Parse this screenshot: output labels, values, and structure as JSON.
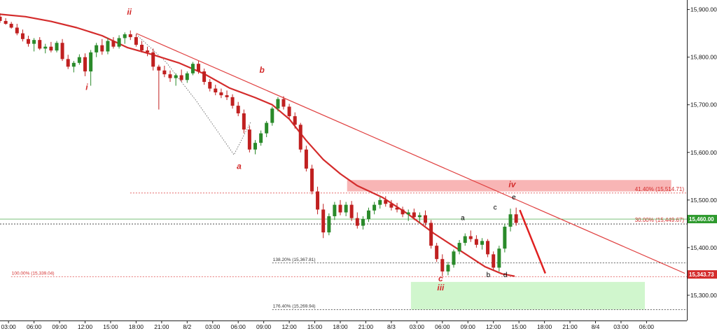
{
  "chart_data": {
    "type": "candlestick",
    "title": "",
    "xlabel": "",
    "ylabel": "",
    "ylim": [
      15247,
      15920
    ],
    "y_ticks": [
      {
        "value": 15900,
        "label": "15,900.00"
      },
      {
        "value": 15800,
        "label": "15,800.00"
      },
      {
        "value": 15700,
        "label": "15,700.00"
      },
      {
        "value": 15600,
        "label": "15,600.00"
      },
      {
        "value": 15500,
        "label": "15,500.00"
      },
      {
        "value": 15400,
        "label": "15,400.00"
      },
      {
        "value": 15300,
        "label": "15,300.00"
      }
    ],
    "x_tick_labels": [
      "03:00",
      "06:00",
      "09:00",
      "12:00",
      "15:00",
      "18:00",
      "21:00",
      "8/2",
      "03:00",
      "06:00",
      "09:00",
      "12:00",
      "15:00",
      "18:00",
      "21:00",
      "8/3",
      "03:00",
      "06:00",
      "09:00",
      "12:00",
      "15:00",
      "18:00",
      "21:00",
      "8/4",
      "03:00",
      "06:00"
    ],
    "x_range_hours": [
      0,
      80.5
    ],
    "x_ticks_hours": [
      1,
      4,
      7,
      10,
      13,
      16,
      19,
      22,
      25,
      28,
      31,
      34,
      37,
      40,
      43,
      46,
      49,
      52,
      55,
      58,
      61,
      64,
      67,
      70,
      73,
      76
    ],
    "price_badges": [
      {
        "value": 15460,
        "label": "15,460.00",
        "color": "#2e9a2e"
      },
      {
        "value": 15343.73,
        "label": "15,343.73",
        "color": "#d42c2c"
      }
    ],
    "fib_levels": [
      {
        "value": 15514.71,
        "label": "41.40% (15,514.71)",
        "label_side": "right",
        "start_h": 15.3
      },
      {
        "value": 15449.67,
        "label": "30.00% (15,449.67)",
        "label_side": "right",
        "start_h": 0
      },
      {
        "value": 15367.81,
        "label": "138.20% (15,367.81)",
        "label_side": "left",
        "start_h": 32
      },
      {
        "value": 15339.04,
        "label": "100.00% (15,339.04)",
        "label_side": "left",
        "start_h": 1.3
      },
      {
        "value": 15269.94,
        "label": "176.40% (15,269.94)",
        "label_side": "left",
        "start_h": 32
      }
    ],
    "zones": [
      {
        "name": "resistance",
        "x0_h": 40.8,
        "x1_h": 78.9,
        "y0": 15518,
        "y1": 15542,
        "color": "#f7a8a8"
      },
      {
        "name": "target",
        "x0_h": 48.3,
        "x1_h": 75.8,
        "y0": 15270,
        "y1": 15328,
        "color": "#c8f5c4"
      }
    ],
    "trendline": {
      "x0_h": 16,
      "y0": 15850,
      "x1_h": 80.5,
      "y1": 15346,
      "color": "#e04040"
    },
    "moving_average": [
      [
        0,
        15890
      ],
      [
        3,
        15885
      ],
      [
        6,
        15875
      ],
      [
        9,
        15862
      ],
      [
        12,
        15845
      ],
      [
        15,
        15820
      ],
      [
        18,
        15805
      ],
      [
        21,
        15788
      ],
      [
        24,
        15765
      ],
      [
        27,
        15735
      ],
      [
        30,
        15715
      ],
      [
        32,
        15700
      ],
      [
        34,
        15670
      ],
      [
        36,
        15625
      ],
      [
        38,
        15585
      ],
      [
        40,
        15555
      ],
      [
        42,
        15530
      ],
      [
        45,
        15505
      ],
      [
        48,
        15470
      ],
      [
        51,
        15430
      ],
      [
        54,
        15395
      ],
      [
        57,
        15360
      ],
      [
        59,
        15345
      ],
      [
        60.5,
        15340
      ]
    ],
    "projection": [
      [
        61.1,
        15479
      ],
      [
        64.1,
        15346
      ]
    ],
    "dotted_path": [
      [
        16,
        15848
      ],
      [
        19.5,
        15790
      ],
      [
        23,
        15710
      ],
      [
        27.5,
        15595
      ],
      [
        29.5,
        15665
      ]
    ],
    "wave_labels": [
      {
        "text": "ii",
        "x_h": 15.2,
        "y": 15889,
        "color": "#d42c2c",
        "italic": true
      },
      {
        "text": "i",
        "x_h": 10.2,
        "y": 15731,
        "color": "#d42c2c",
        "italic": true
      },
      {
        "text": "b",
        "x_h": 30.8,
        "y": 15767,
        "color": "#d42c2c",
        "italic": true
      },
      {
        "text": "a",
        "x_h": 28.1,
        "y": 15565,
        "color": "#d42c2c",
        "italic": true
      },
      {
        "text": "iv",
        "x_h": 60.2,
        "y": 15527,
        "color": "#d42c2c",
        "italic": true
      },
      {
        "text": "c",
        "x_h": 51.8,
        "y": 15329,
        "color": "#d42c2c",
        "italic": true
      },
      {
        "text": "iii",
        "x_h": 51.8,
        "y": 15310,
        "color": "#d42c2c",
        "italic": true
      },
      {
        "text": "a",
        "x_h": 54.4,
        "y": 15458,
        "color": "#000000",
        "italic": false
      },
      {
        "text": "b",
        "x_h": 57.4,
        "y": 15338,
        "color": "#000000",
        "italic": false
      },
      {
        "text": "c",
        "x_h": 58.2,
        "y": 15480,
        "color": "#000000",
        "italic": false
      },
      {
        "text": "d",
        "x_h": 59.4,
        "y": 15338,
        "color": "#000000",
        "italic": false
      },
      {
        "text": "e",
        "x_h": 60.4,
        "y": 15501,
        "color": "#000000",
        "italic": false
      }
    ],
    "candles": [
      [
        0,
        15885,
        15892,
        15872,
        15876
      ],
      [
        0.67,
        15876,
        15882,
        15868,
        15870
      ],
      [
        1.33,
        15870,
        15874,
        15860,
        15862
      ],
      [
        2,
        15862,
        15870,
        15846,
        15850
      ],
      [
        2.67,
        15850,
        15858,
        15833,
        15838
      ],
      [
        3.33,
        15838,
        15845,
        15822,
        15828
      ],
      [
        4,
        15828,
        15840,
        15812,
        15836
      ],
      [
        4.67,
        15836,
        15842,
        15815,
        15818
      ],
      [
        5.33,
        15818,
        15828,
        15808,
        15822
      ],
      [
        6,
        15822,
        15832,
        15810,
        15814
      ],
      [
        6.67,
        15814,
        15834,
        15810,
        15830
      ],
      [
        7.33,
        15830,
        15838,
        15792,
        15796
      ],
      [
        8,
        15796,
        15805,
        15775,
        15780
      ],
      [
        8.67,
        15780,
        15792,
        15768,
        15788
      ],
      [
        9.33,
        15788,
        15806,
        15784,
        15800
      ],
      [
        10,
        15800,
        15808,
        15760,
        15770
      ],
      [
        10.67,
        15770,
        15815,
        15740,
        15810
      ],
      [
        11.33,
        15810,
        15830,
        15800,
        15825
      ],
      [
        12,
        15825,
        15838,
        15805,
        15812
      ],
      [
        12.67,
        15812,
        15840,
        15806,
        15834
      ],
      [
        13.33,
        15834,
        15842,
        15818,
        15822
      ],
      [
        14,
        15822,
        15846,
        15818,
        15840
      ],
      [
        14.67,
        15840,
        15852,
        15828,
        15848
      ],
      [
        15.33,
        15848,
        15856,
        15836,
        15842
      ],
      [
        16,
        15842,
        15848,
        15822,
        15826
      ],
      [
        16.67,
        15826,
        15834,
        15810,
        15814
      ],
      [
        17.33,
        15814,
        15822,
        15802,
        15810
      ],
      [
        18,
        15810,
        15818,
        15772,
        15780
      ],
      [
        18.67,
        15780,
        15784,
        15690,
        15772
      ],
      [
        19.33,
        15772,
        15782,
        15758,
        15764
      ],
      [
        20,
        15764,
        15772,
        15748,
        15756
      ],
      [
        20.67,
        15756,
        15766,
        15740,
        15762
      ],
      [
        21.33,
        15762,
        15774,
        15748,
        15752
      ],
      [
        22,
        15752,
        15770,
        15746,
        15766
      ],
      [
        22.67,
        15766,
        15790,
        15762,
        15786
      ],
      [
        23.33,
        15786,
        15792,
        15765,
        15770
      ],
      [
        24,
        15770,
        15776,
        15742,
        15748
      ],
      [
        24.67,
        15748,
        15754,
        15728,
        15734
      ],
      [
        25.33,
        15734,
        15742,
        15720,
        15726
      ],
      [
        26,
        15726,
        15734,
        15714,
        15720
      ],
      [
        26.67,
        15720,
        15730,
        15710,
        15716
      ],
      [
        27.33,
        15716,
        15722,
        15692,
        15698
      ],
      [
        28,
        15698,
        15706,
        15676,
        15682
      ],
      [
        28.67,
        15682,
        15690,
        15640,
        15648
      ],
      [
        29.33,
        15648,
        15656,
        15600,
        15606
      ],
      [
        30,
        15606,
        15626,
        15596,
        15620
      ],
      [
        30.67,
        15620,
        15646,
        15614,
        15640
      ],
      [
        31.33,
        15640,
        15666,
        15632,
        15662
      ],
      [
        32,
        15662,
        15696,
        15656,
        15692
      ],
      [
        32.67,
        15692,
        15716,
        15686,
        15712
      ],
      [
        33.33,
        15712,
        15718,
        15690,
        15696
      ],
      [
        34,
        15696,
        15702,
        15670,
        15676
      ],
      [
        34.67,
        15676,
        15684,
        15650,
        15658
      ],
      [
        35.33,
        15658,
        15662,
        15600,
        15606
      ],
      [
        36,
        15606,
        15614,
        15560,
        15566
      ],
      [
        36.67,
        15566,
        15574,
        15512,
        15518
      ],
      [
        37.33,
        15518,
        15528,
        15470,
        15480
      ],
      [
        38,
        15480,
        15492,
        15420,
        15432
      ],
      [
        38.67,
        15432,
        15472,
        15426,
        15466
      ],
      [
        39.33,
        15466,
        15496,
        15458,
        15490
      ],
      [
        40,
        15490,
        15500,
        15468,
        15474
      ],
      [
        40.67,
        15474,
        15496,
        15466,
        15490
      ],
      [
        41.33,
        15490,
        15498,
        15456,
        15462
      ],
      [
        42,
        15462,
        15474,
        15440,
        15446
      ],
      [
        42.67,
        15446,
        15466,
        15438,
        15460
      ],
      [
        43.33,
        15460,
        15484,
        15454,
        15478
      ],
      [
        44,
        15478,
        15496,
        15470,
        15490
      ],
      [
        44.67,
        15490,
        15506,
        15482,
        15500
      ],
      [
        45.33,
        15500,
        15508,
        15486,
        15492
      ],
      [
        46,
        15492,
        15500,
        15478,
        15484
      ],
      [
        46.67,
        15484,
        15494,
        15474,
        15480
      ],
      [
        47.33,
        15480,
        15486,
        15464,
        15470
      ],
      [
        48,
        15470,
        15480,
        15456,
        15474
      ],
      [
        48.67,
        15474,
        15482,
        15458,
        15464
      ],
      [
        49.33,
        15464,
        15474,
        15452,
        15468
      ],
      [
        50,
        15468,
        15478,
        15446,
        15452
      ],
      [
        50.67,
        15452,
        15458,
        15398,
        15404
      ],
      [
        51.33,
        15404,
        15410,
        15370,
        15376
      ],
      [
        52,
        15376,
        15386,
        15340,
        15350
      ],
      [
        52.67,
        15350,
        15370,
        15342,
        15364
      ],
      [
        53.33,
        15364,
        15396,
        15358,
        15392
      ],
      [
        54,
        15392,
        15416,
        15386,
        15410
      ],
      [
        54.67,
        15410,
        15430,
        15404,
        15424
      ],
      [
        55.33,
        15424,
        15436,
        15412,
        15418
      ],
      [
        56,
        15418,
        15426,
        15400,
        15406
      ],
      [
        56.67,
        15406,
        15420,
        15396,
        15414
      ],
      [
        57.33,
        15414,
        15418,
        15380,
        15386
      ],
      [
        58,
        15386,
        15392,
        15352,
        15358
      ],
      [
        58.67,
        15358,
        15404,
        15350,
        15398
      ],
      [
        59.33,
        15398,
        15450,
        15390,
        15444
      ],
      [
        60,
        15444,
        15482,
        15434,
        15470
      ],
      [
        60.67,
        15470,
        15484,
        15446,
        15452
      ]
    ]
  }
}
